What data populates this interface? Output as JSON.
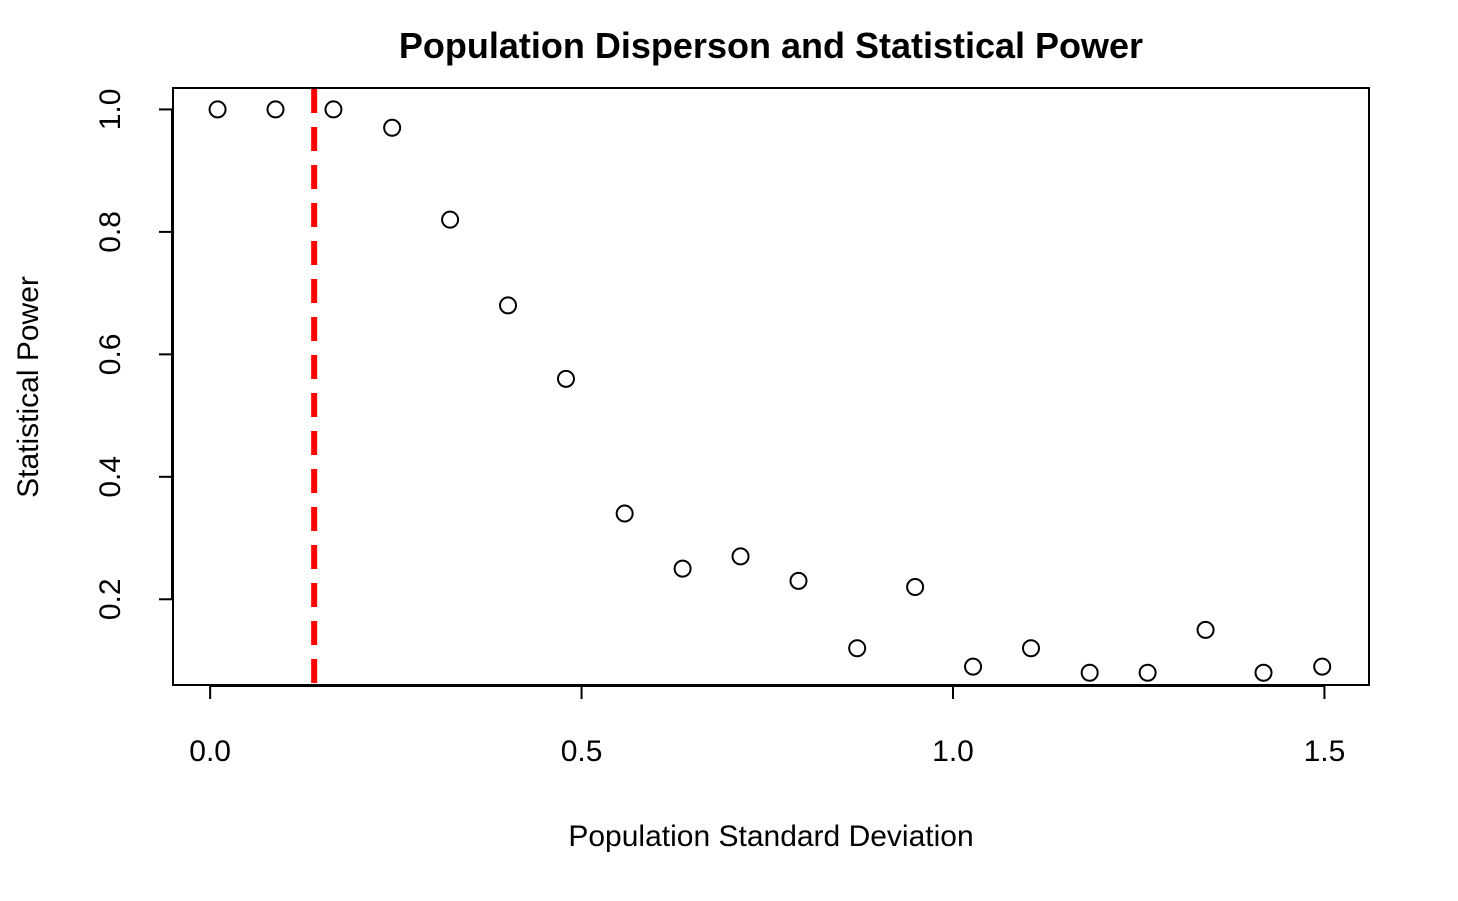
{
  "chart_data": {
    "type": "scatter",
    "title": "Population Disperson and Statistical Power",
    "xlabel": "Population Standard Deviation",
    "ylabel": "Statistical Power",
    "xlim": [
      -0.05,
      1.56
    ],
    "ylim": [
      0.06,
      1.035
    ],
    "x_ticks": [
      0.0,
      0.5,
      1.0,
      1.5
    ],
    "x_tick_labels": [
      "0.0",
      "0.5",
      "1.0",
      "1.5"
    ],
    "y_ticks": [
      0.2,
      0.4,
      0.6,
      0.8,
      1.0
    ],
    "y_tick_labels": [
      "0.2",
      "0.4",
      "0.6",
      "0.8",
      "1.0"
    ],
    "grid": false,
    "legend": "none",
    "series": [
      {
        "marker": "open-circle",
        "color": "#000000",
        "x": [
          0.01,
          0.088,
          0.166,
          0.245,
          0.323,
          0.401,
          0.479,
          0.558,
          0.636,
          0.714,
          0.792,
          0.871,
          0.949,
          1.027,
          1.105,
          1.184,
          1.262,
          1.34,
          1.418,
          1.497
        ],
        "y": [
          1.0,
          1.0,
          1.0,
          0.97,
          0.82,
          0.68,
          0.56,
          0.34,
          0.25,
          0.27,
          0.23,
          0.12,
          0.22,
          0.09,
          0.12,
          0.08,
          0.08,
          0.15,
          0.08,
          0.09
        ]
      }
    ],
    "reference_lines": [
      {
        "orientation": "vertical",
        "x": 0.14,
        "color": "#ff0000",
        "style": "dashed"
      }
    ]
  }
}
